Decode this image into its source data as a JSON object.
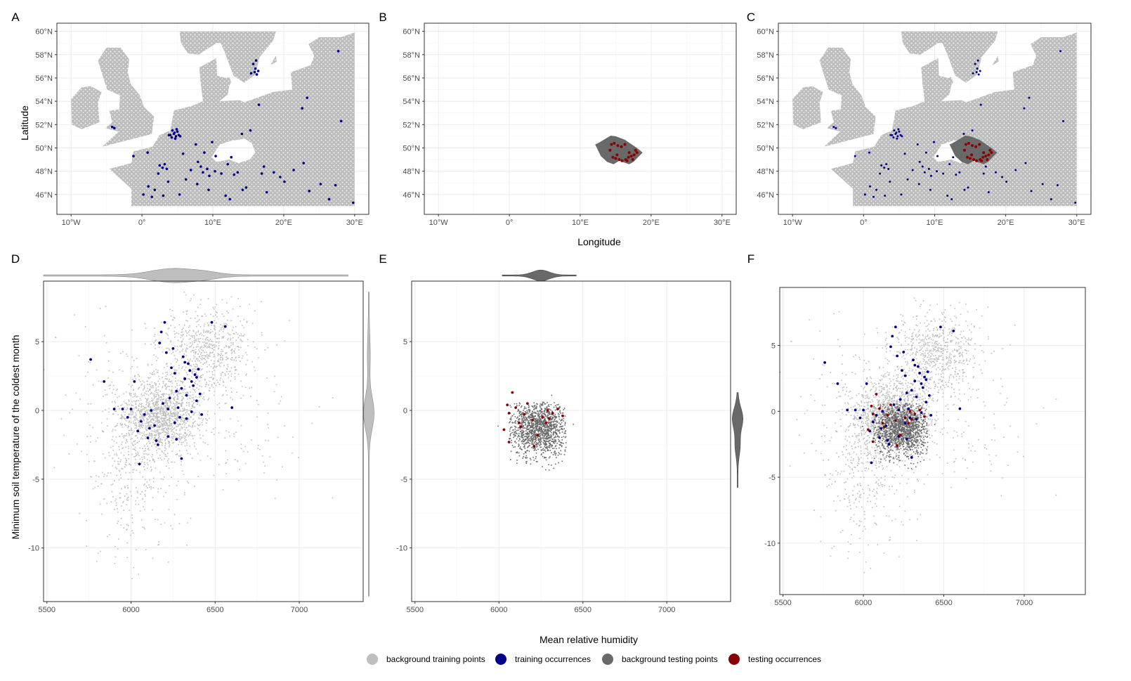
{
  "figure": {
    "colors": {
      "background_training": "#bebebe",
      "training_occurrences": "#00008b",
      "background_testing": "#696969",
      "testing_occurrences": "#8b0000"
    },
    "legend": [
      {
        "key": "background_training",
        "label": "background training points"
      },
      {
        "key": "training_occurrences",
        "label": "training occurrences"
      },
      {
        "key": "background_testing",
        "label": "background testing points"
      },
      {
        "key": "testing_occurrences",
        "label": "testing occurrences"
      }
    ],
    "map_axis_titles": {
      "x": "Longitude",
      "y": "Latitude"
    },
    "env_axis_titles": {
      "x": "Mean relative humidity",
      "y": "Minimum soil temperature of the coldest month"
    }
  },
  "chart_data": [
    {
      "panel": "A",
      "type": "scatter",
      "kind": "map",
      "xlim": [
        -12,
        32
      ],
      "ylim": [
        44.3,
        60.7
      ],
      "xticks": [
        -10,
        0,
        10,
        20,
        30
      ],
      "xtick_labels": [
        "10°W",
        "0°",
        "10°E",
        "20°E",
        "30°E"
      ],
      "yticks": [
        46,
        48,
        50,
        52,
        54,
        56,
        58,
        60
      ],
      "ytick_labels": [
        "46°N",
        "48°N",
        "50°N",
        "52°N",
        "54°N",
        "56°N",
        "58°N",
        "60°N"
      ],
      "layers": [
        "background_training",
        "training_occurrences"
      ],
      "training_occurrences": [
        [
          4.0,
          51.1
        ],
        [
          4.5,
          51.2
        ],
        [
          4.8,
          51.0
        ],
        [
          5.2,
          51.1
        ],
        [
          4.2,
          50.9
        ],
        [
          4.6,
          51.3
        ],
        [
          5.0,
          51.4
        ],
        [
          4.3,
          51.5
        ],
        [
          4.7,
          50.8
        ],
        [
          5.4,
          51.0
        ],
        [
          4.9,
          51.6
        ],
        [
          3.8,
          51.1
        ],
        [
          15.4,
          56.4
        ],
        [
          15.9,
          56.5
        ],
        [
          16.2,
          56.3
        ],
        [
          16.0,
          56.8
        ],
        [
          15.7,
          57.2
        ],
        [
          16.1,
          57.5
        ],
        [
          16.4,
          56.6
        ],
        [
          27.7,
          58.3
        ],
        [
          22.6,
          53.4
        ],
        [
          23.3,
          54.3
        ],
        [
          16.5,
          53.7
        ],
        [
          28.1,
          52.3
        ],
        [
          14.1,
          51.2
        ],
        [
          15.3,
          51.5
        ],
        [
          -3.9,
          51.7
        ],
        [
          -4.2,
          51.8
        ],
        [
          -1.2,
          49.3
        ],
        [
          0.8,
          49.6
        ],
        [
          2.5,
          48.5
        ],
        [
          2.9,
          48.3
        ],
        [
          3.2,
          48.6
        ],
        [
          3.5,
          48.2
        ],
        [
          2.3,
          47.8
        ],
        [
          7.9,
          48.8
        ],
        [
          8.3,
          48.4
        ],
        [
          8.6,
          47.9
        ],
        [
          9.2,
          48.2
        ],
        [
          9.5,
          47.6
        ],
        [
          10.3,
          48.0
        ],
        [
          11.2,
          47.8
        ],
        [
          12.1,
          48.6
        ],
        [
          13.0,
          47.7
        ],
        [
          13.5,
          47.9
        ],
        [
          14.2,
          46.4
        ],
        [
          14.7,
          46.6
        ],
        [
          16.9,
          47.8
        ],
        [
          17.2,
          48.4
        ],
        [
          18.6,
          47.9
        ],
        [
          19.5,
          47.5
        ],
        [
          21.4,
          48.1
        ],
        [
          22.8,
          48.7
        ],
        [
          25.2,
          46.9
        ],
        [
          27.3,
          46.8
        ],
        [
          29.8,
          45.3
        ],
        [
          0.2,
          46.0
        ],
        [
          0.9,
          46.7
        ],
        [
          1.8,
          46.4
        ],
        [
          3.7,
          47.1
        ],
        [
          5.3,
          46.0
        ],
        [
          6.2,
          47.3
        ],
        [
          7.8,
          46.9
        ],
        [
          9.4,
          46.4
        ],
        [
          11.8,
          45.9
        ],
        [
          12.4,
          45.6
        ],
        [
          1.4,
          45.8
        ],
        [
          3.0,
          45.9
        ],
        [
          5.8,
          49.5
        ],
        [
          7.6,
          50.3
        ],
        [
          10.4,
          49.3
        ],
        [
          12.6,
          49.2
        ],
        [
          8.8,
          49.6
        ],
        [
          9.9,
          50.5
        ],
        [
          6.9,
          48.1
        ],
        [
          17.6,
          46.2
        ],
        [
          20.1,
          47.1
        ],
        [
          23.6,
          46.3
        ],
        [
          26.4,
          45.6
        ]
      ]
    },
    {
      "panel": "B",
      "type": "scatter",
      "kind": "map",
      "xlim": [
        -12,
        32
      ],
      "ylim": [
        44.3,
        60.7
      ],
      "xticks": [
        -10,
        0,
        10,
        20,
        30
      ],
      "xtick_labels": [
        "10°W",
        "0°",
        "10°E",
        "20°E",
        "30°E"
      ],
      "yticks": [
        46,
        48,
        50,
        52,
        54,
        56,
        58,
        60
      ],
      "ytick_labels": [
        "46°N",
        "48°N",
        "50°N",
        "52°N",
        "54°N",
        "56°N",
        "58°N",
        "60°N"
      ],
      "layers": [
        "background_testing",
        "testing_occurrences"
      ],
      "testing_occurrences": [
        [
          14.4,
          50.3
        ],
        [
          14.8,
          50.4
        ],
        [
          15.3,
          50.2
        ],
        [
          15.8,
          50.1
        ],
        [
          16.3,
          50.3
        ],
        [
          14.6,
          49.2
        ],
        [
          15.0,
          49.1
        ],
        [
          15.5,
          49.0
        ],
        [
          15.9,
          48.9
        ],
        [
          16.4,
          49.0
        ],
        [
          16.8,
          49.2
        ],
        [
          17.2,
          49.3
        ],
        [
          17.6,
          49.4
        ],
        [
          18.0,
          49.6
        ],
        [
          17.4,
          49.0
        ],
        [
          16.6,
          48.9
        ],
        [
          15.2,
          49.4
        ],
        [
          14.2,
          49.8
        ],
        [
          16.9,
          49.6
        ],
        [
          17.8,
          49.8
        ]
      ]
    },
    {
      "panel": "C",
      "type": "scatter",
      "kind": "map",
      "xlim": [
        -12,
        32
      ],
      "ylim": [
        44.3,
        60.7
      ],
      "xticks": [
        -10,
        0,
        10,
        20,
        30
      ],
      "xtick_labels": [
        "10°W",
        "0°",
        "10°E",
        "20°E",
        "30°E"
      ],
      "yticks": [
        46,
        48,
        50,
        52,
        54,
        56,
        58,
        60
      ],
      "ytick_labels": [
        "46°N",
        "48°N",
        "50°N",
        "52°N",
        "54°N",
        "56°N",
        "58°N",
        "60°N"
      ],
      "layers": [
        "background_training",
        "training_occurrences",
        "background_testing",
        "testing_occurrences"
      ]
    },
    {
      "panel": "D",
      "type": "scatter",
      "kind": "environmental",
      "xlim": [
        5480,
        7380
      ],
      "ylim": [
        -13.9,
        9.4
      ],
      "xticks": [
        5500,
        6000,
        6500,
        7000
      ],
      "yticks": [
        -10,
        -5,
        0,
        5
      ],
      "layers": [
        "background_training",
        "training_occurrences"
      ],
      "marginals": "background_training",
      "training_occurrences": [
        [
          5760,
          3.7
        ],
        [
          5840,
          2.1
        ],
        [
          5900,
          0.1
        ],
        [
          5950,
          0.1
        ],
        [
          5980,
          -0.5
        ],
        [
          6000,
          0.1
        ],
        [
          6020,
          2.1
        ],
        [
          6040,
          -1.5
        ],
        [
          6060,
          -0.8
        ],
        [
          6080,
          -0.3
        ],
        [
          6100,
          -2.0
        ],
        [
          6120,
          0.0
        ],
        [
          6140,
          -1.1
        ],
        [
          6150,
          -2.2
        ],
        [
          6160,
          -2.5
        ],
        [
          6170,
          4.9
        ],
        [
          6180,
          5.7
        ],
        [
          6200,
          6.4
        ],
        [
          6210,
          4.2
        ],
        [
          6220,
          -1.9
        ],
        [
          6230,
          0.9
        ],
        [
          6240,
          3.1
        ],
        [
          6250,
          4.5
        ],
        [
          6260,
          2.7
        ],
        [
          6270,
          1.4
        ],
        [
          6280,
          0.2
        ],
        [
          6290,
          -0.5
        ],
        [
          6300,
          -3.5
        ],
        [
          6310,
          3.9
        ],
        [
          6320,
          2.3
        ],
        [
          6330,
          1.1
        ],
        [
          6340,
          3.4
        ],
        [
          6350,
          2.9
        ],
        [
          6360,
          -0.1
        ],
        [
          6370,
          1.8
        ],
        [
          6380,
          2.6
        ],
        [
          6390,
          0.7
        ],
        [
          6400,
          3.0
        ],
        [
          6410,
          1.2
        ],
        [
          6420,
          -0.3
        ],
        [
          6480,
          6.4
        ],
        [
          6560,
          6.1
        ],
        [
          6600,
          0.2
        ],
        [
          6050,
          -3.9
        ],
        [
          6110,
          -1.3
        ],
        [
          6190,
          0.5
        ],
        [
          6260,
          -0.9
        ],
        [
          6300,
          1.6
        ],
        [
          6330,
          -0.6
        ],
        [
          6360,
          2.1
        ],
        [
          6220,
          0.1
        ],
        [
          6270,
          -2.1
        ],
        [
          6320,
          3.5
        ],
        [
          6390,
          2.4
        ]
      ]
    },
    {
      "panel": "E",
      "type": "scatter",
      "kind": "environmental",
      "xlim": [
        5480,
        7380
      ],
      "ylim": [
        -13.9,
        9.4
      ],
      "xticks": [
        5500,
        6000,
        6500,
        7000
      ],
      "yticks": [
        -10,
        -5,
        0,
        5
      ],
      "layers": [
        "background_testing",
        "testing_occurrences"
      ],
      "marginals": "background_testing",
      "testing_occurrences": [
        [
          6030,
          -1.4
        ],
        [
          6050,
          0.4
        ],
        [
          6060,
          -0.2
        ],
        [
          6080,
          1.3
        ],
        [
          6100,
          0.2
        ],
        [
          6120,
          -0.9
        ],
        [
          6150,
          -0.3
        ],
        [
          6170,
          0.5
        ],
        [
          6200,
          -0.7
        ],
        [
          6230,
          -1.8
        ],
        [
          6260,
          -0.5
        ],
        [
          6280,
          -0.9
        ],
        [
          6300,
          -0.6
        ],
        [
          6320,
          -0.2
        ],
        [
          6350,
          0.1
        ],
        [
          6380,
          -0.4
        ],
        [
          6060,
          -2.3
        ],
        [
          6130,
          -1.2
        ],
        [
          6210,
          -2.6
        ],
        [
          6290,
          0.0
        ]
      ]
    },
    {
      "panel": "F",
      "type": "scatter",
      "kind": "environmental",
      "xlim": [
        5480,
        7380
      ],
      "ylim": [
        -13.9,
        9.4
      ],
      "xticks": [
        5500,
        6000,
        6500,
        7000
      ],
      "yticks": [
        -10,
        -5,
        0,
        5
      ],
      "layers": [
        "background_training",
        "training_occurrences",
        "background_testing",
        "testing_occurrences"
      ]
    }
  ]
}
